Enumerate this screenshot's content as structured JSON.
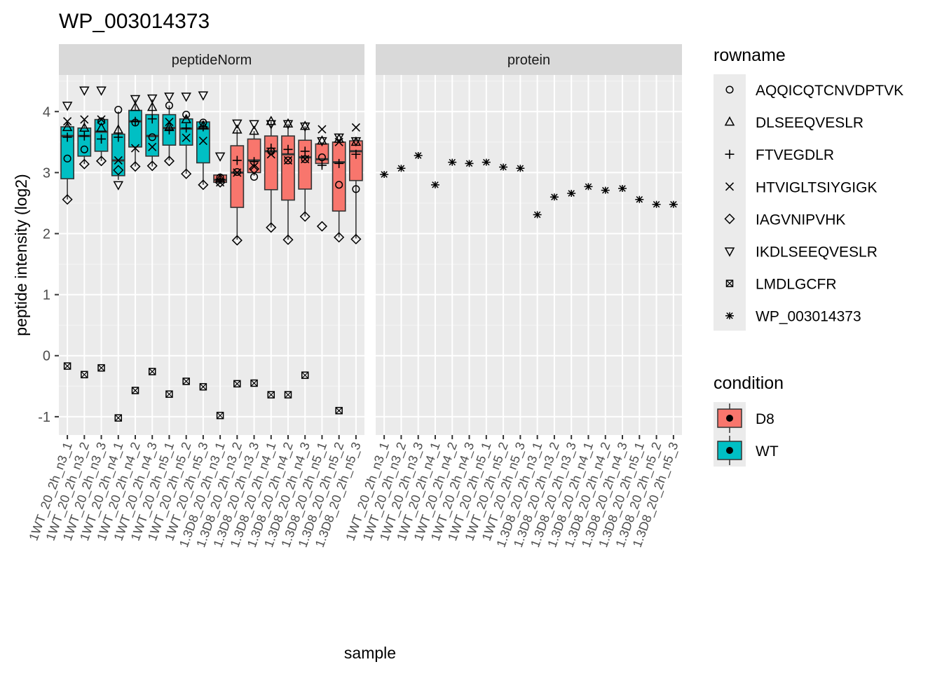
{
  "chart_data": {
    "type": "boxplot",
    "title": "WP_003014373",
    "xlabel": "sample",
    "ylabel": "peptide intensity (log2)",
    "ylim": [
      -1.3,
      4.6
    ],
    "y_ticks": [
      -1,
      0,
      1,
      2,
      3,
      4
    ],
    "y_tick_labels": [
      "-1",
      "0",
      "1",
      "2",
      "3",
      "4"
    ],
    "grid": true,
    "facets": [
      "peptideNorm",
      "protein"
    ],
    "samples": [
      "1WT_20_2h_n3_1",
      "1WT_20_2h_n3_2",
      "1WT_20_2h_n3_3",
      "1WT_20_2h_n4_1",
      "1WT_20_2h_n4_2",
      "1WT_20_2h_n4_3",
      "1WT_20_2h_n5_1",
      "1WT_20_2h_n5_2",
      "1WT_20_2h_n5_3",
      "1.3D8_20_2h_n3_1",
      "1.3D8_20_2h_n3_2",
      "1.3D8_20_2h_n3_3",
      "1.3D8_20_2h_n4_1",
      "1.3D8_20_2h_n4_2",
      "1.3D8_20_2h_n4_3",
      "1.3D8_20_2h_n5_1",
      "1.3D8_20_2h_n5_2",
      "1.3D8_20_2h_n5_3"
    ],
    "sample_labels": [
      "1WT_20_2h_n3_1",
      "1WT_20_2h_n3_2",
      "1WT_20_2h_n3_3",
      "1WT_20_2h_n4_1",
      "1WT_20_2h_n4_2",
      "1WT_20_2h_n4_3",
      "1WT_20_2h_n5_1",
      "1WT_20_2h_n5_2",
      "1WT_20_2h_n5_3",
      "1.3D8_20_2h_n3_1",
      "1.3D8_20_2h_n3_2",
      "1.3D8_20_2h_n3_3",
      "1.3D8_20_2h_n4_1",
      "1.3D8_20_2h_n4_2",
      "1.3D8_20_2h_n4_3",
      "1.3D8_20_2h_n5_1",
      "1.3D8_20_2h_n5_2",
      "1.3D8_20_2h_n5_3"
    ],
    "sample_condition": [
      "WT",
      "WT",
      "WT",
      "WT",
      "WT",
      "WT",
      "WT",
      "WT",
      "WT",
      "D8",
      "D8",
      "D8",
      "D8",
      "D8",
      "D8",
      "D8",
      "D8",
      "D8"
    ],
    "legend_rowname": {
      "title": "rowname",
      "position": "right",
      "entries": [
        {
          "name": "AQQICQTCNVDPTVK",
          "shape": "circle"
        },
        {
          "name": "DLSEEQVESLR",
          "shape": "triangle"
        },
        {
          "name": "FTVEGDLR",
          "shape": "plus"
        },
        {
          "name": "HTVIGLTSIYGIGK",
          "shape": "cross"
        },
        {
          "name": "IAGVNIPVHK",
          "shape": "diamond"
        },
        {
          "name": "IKDLSEEQVESLR",
          "shape": "triangle-down"
        },
        {
          "name": "LMDLGCFR",
          "shape": "square-cross"
        },
        {
          "name": "WP_003014373",
          "shape": "asterisk"
        }
      ]
    },
    "legend_condition": {
      "title": "condition",
      "position": "right",
      "entries": [
        {
          "name": "D8",
          "color": "#F8766D"
        },
        {
          "name": "WT",
          "color": "#00BFC4"
        }
      ]
    },
    "peptideNorm_boxes": [
      {
        "q1": 2.9,
        "med": 3.6,
        "q3": 3.75,
        "lo": 2.56,
        "hi": 3.84
      },
      {
        "q1": 3.27,
        "med": 3.6,
        "q3": 3.73,
        "lo": 3.14,
        "hi": 3.87
      },
      {
        "q1": 3.35,
        "med": 3.67,
        "q3": 3.87,
        "lo": 3.19,
        "hi": 3.89
      },
      {
        "q1": 2.95,
        "med": 3.2,
        "q3": 3.63,
        "lo": 2.88,
        "hi": 4.0
      },
      {
        "q1": 3.42,
        "med": 3.84,
        "q3": 4.02,
        "lo": 3.1,
        "hi": 4.2
      },
      {
        "q1": 3.27,
        "med": 3.6,
        "q3": 3.95,
        "lo": 3.1,
        "hi": 4.2
      },
      {
        "q1": 3.45,
        "med": 3.73,
        "q3": 3.95,
        "lo": 3.2,
        "hi": 4.1
      },
      {
        "q1": 3.45,
        "med": 3.72,
        "q3": 3.88,
        "lo": 2.98,
        "hi": 3.95
      },
      {
        "q1": 3.16,
        "med": 3.72,
        "q3": 3.83,
        "lo": 2.8,
        "hi": 3.85
      },
      {
        "q1": 2.84,
        "med": 2.88,
        "q3": 2.96,
        "lo": 2.84,
        "hi": 2.97
      },
      {
        "q1": 2.43,
        "med": 3.0,
        "q3": 3.44,
        "lo": 1.9,
        "hi": 3.7
      },
      {
        "q1": 3.0,
        "med": 3.2,
        "q3": 3.55,
        "lo": 2.95,
        "hi": 3.68
      },
      {
        "q1": 2.72,
        "med": 3.35,
        "q3": 3.6,
        "lo": 2.1,
        "hi": 3.84
      },
      {
        "q1": 2.55,
        "med": 3.3,
        "q3": 3.6,
        "lo": 1.9,
        "hi": 3.8
      },
      {
        "q1": 2.73,
        "med": 3.25,
        "q3": 3.53,
        "lo": 2.28,
        "hi": 3.76
      },
      {
        "q1": 3.15,
        "med": 3.22,
        "q3": 3.47,
        "lo": 3.08,
        "hi": 3.5
      },
      {
        "q1": 2.37,
        "med": 3.17,
        "q3": 3.5,
        "lo": 1.94,
        "hi": 3.55
      },
      {
        "q1": 2.87,
        "med": 3.35,
        "q3": 3.52,
        "lo": 1.92,
        "hi": 3.58
      }
    ],
    "peptideNorm_points": {
      "AQQICQTCNVDPTVK": [
        3.23,
        3.38,
        3.84,
        4.03,
        3.82,
        3.58,
        4.1,
        3.95,
        3.82,
        2.92,
        3.01,
        2.93,
        3.35,
        3.2,
        3.22,
        3.25,
        2.8,
        2.73
      ],
      "DLSEEQVESLR": [
        3.74,
        3.73,
        3.73,
        3.7,
        4.07,
        4.07,
        3.74,
        3.87,
        3.77,
        2.9,
        3.7,
        3.68,
        3.84,
        3.8,
        3.76,
        3.52,
        3.55,
        3.5
      ],
      "FTVEGDLR": [
        3.58,
        3.6,
        3.55,
        3.58,
        3.84,
        3.88,
        3.7,
        3.73,
        3.75,
        2.89,
        3.2,
        3.18,
        3.4,
        3.38,
        3.35,
        3.12,
        3.15,
        3.3
      ],
      "HTVIGLTSIYGIGK": [
        3.84,
        3.87,
        3.87,
        3.2,
        3.4,
        3.42,
        3.83,
        3.57,
        3.52,
        2.84,
        3.0,
        3.1,
        3.3,
        3.2,
        3.22,
        3.71,
        3.5,
        3.74
      ],
      "IAGVNIPVHK": [
        2.56,
        3.14,
        3.19,
        3.04,
        3.1,
        3.11,
        3.19,
        2.98,
        2.8,
        2.84,
        1.89,
        3.06,
        2.1,
        1.9,
        2.28,
        2.12,
        1.94,
        1.91
      ],
      "IKDLSEEQVESLR": [
        4.1,
        4.35,
        4.35,
        2.8,
        4.21,
        4.22,
        4.25,
        4.25,
        4.27,
        3.27,
        3.81,
        3.8,
        3.8,
        3.8,
        3.76,
        3.52,
        3.58,
        3.52
      ],
      "LMDLGCFR": [
        -0.17,
        -0.31,
        -0.2,
        -1.02,
        -0.57,
        -0.26,
        -0.63,
        -0.42,
        -0.51,
        -0.98,
        -0.46,
        -0.45,
        -0.64,
        -0.64,
        -0.32,
        null,
        -0.9,
        null
      ]
    },
    "protein_points": {
      "WP_003014373": [
        2.97,
        3.07,
        3.28,
        2.8,
        3.17,
        3.15,
        3.17,
        3.09,
        3.07,
        2.31,
        2.6,
        2.66,
        2.77,
        2.71,
        2.74,
        2.56,
        2.48,
        2.48
      ]
    }
  }
}
